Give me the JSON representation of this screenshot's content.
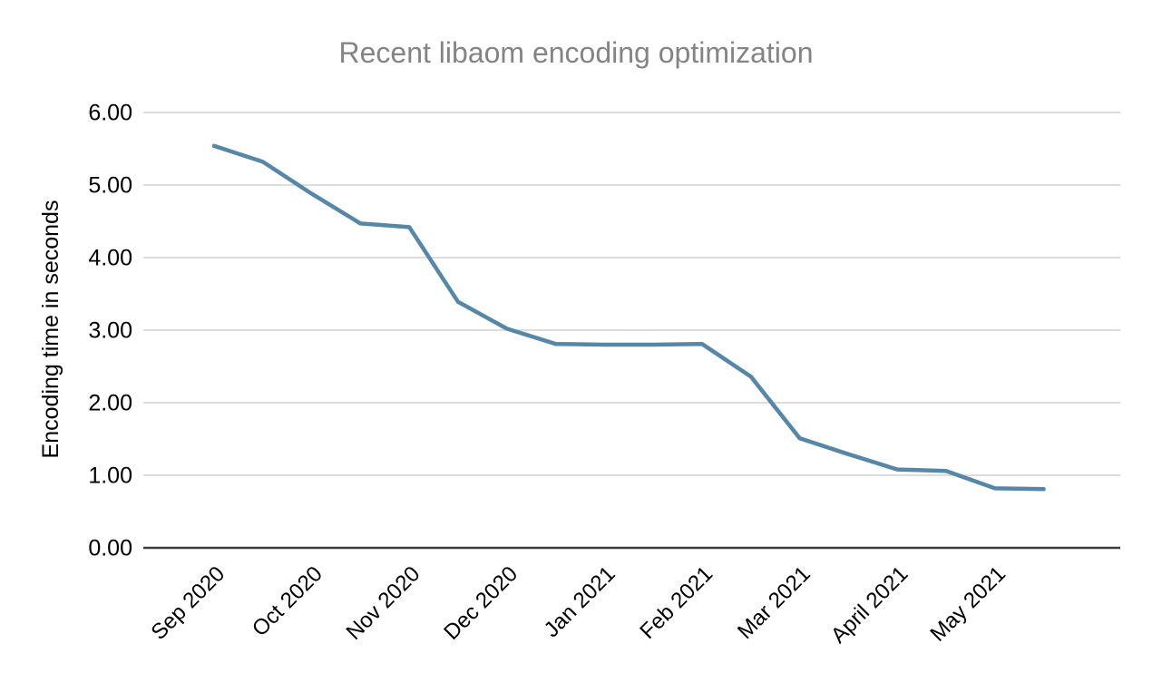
{
  "chart_data": {
    "type": "line",
    "title": "Recent libaom encoding optimization",
    "xlabel": "",
    "ylabel": "Encoding time in seconds",
    "categories": [
      "Sep 2020",
      "",
      "Oct 2020",
      "",
      "Nov 2020",
      "",
      "Dec 2020",
      "",
      "Jan 2021",
      "",
      "Feb 2021",
      "",
      "Mar 2021",
      "",
      "April 2021",
      "",
      "May 2021",
      ""
    ],
    "values": [
      5.54,
      5.32,
      4.88,
      4.47,
      4.42,
      3.39,
      3.02,
      2.81,
      2.8,
      2.8,
      2.81,
      2.36,
      1.51,
      1.29,
      1.08,
      1.06,
      0.82,
      0.81
    ],
    "ylim": [
      0,
      6
    ],
    "ytick_step": 1,
    "ytick_decimals": 2,
    "grid": true,
    "legend_position": "none",
    "series_name": "Encoding time",
    "colors": {
      "series_line": "#5687a6",
      "title_text": "#848484",
      "axis_label_text": "#000000",
      "gridline": "#d2d2d2",
      "baseline_axis": "#3c3c3c"
    }
  }
}
